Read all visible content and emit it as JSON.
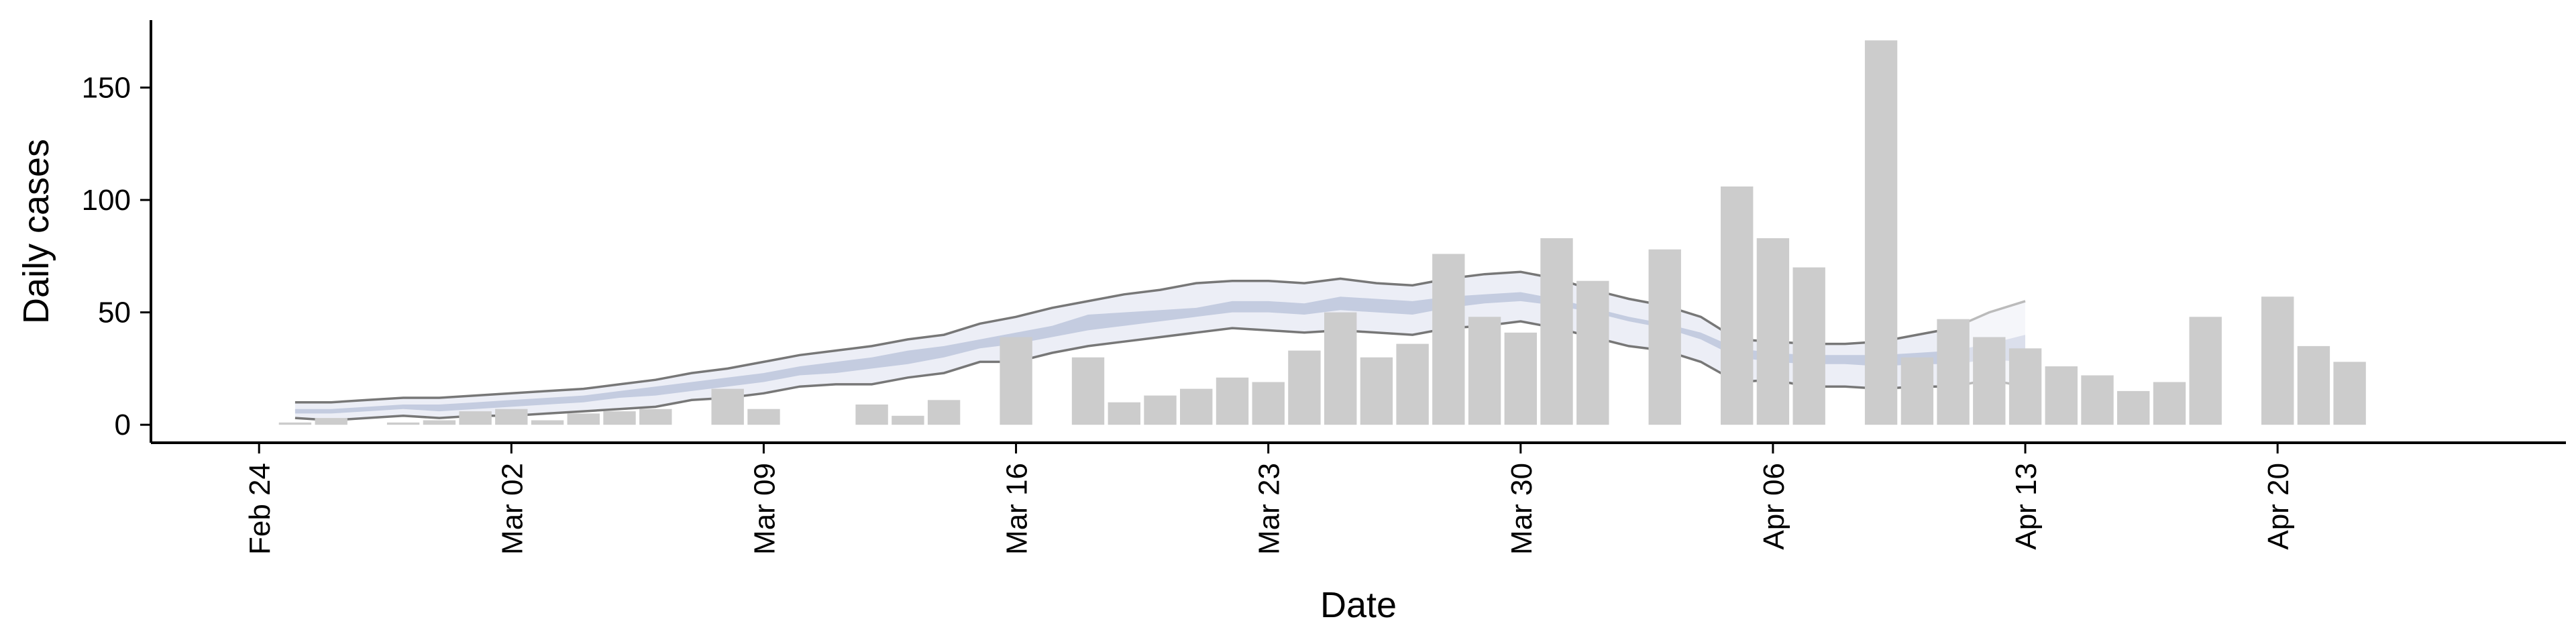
{
  "chart_data": {
    "type": "bar",
    "title": "",
    "xlabel": "Date",
    "ylabel": "Daily cases",
    "ylim": [
      -8,
      180
    ],
    "xlim": [
      "2020-02-21",
      "2020-04-28"
    ],
    "grid": false,
    "legend": "none",
    "y_ticks": [
      0,
      50,
      100,
      150
    ],
    "x_ticks": [
      {
        "date": "2020-02-24",
        "label": "Feb 24"
      },
      {
        "date": "2020-03-02",
        "label": "Mar 02"
      },
      {
        "date": "2020-03-09",
        "label": "Mar 09"
      },
      {
        "date": "2020-03-16",
        "label": "Mar 16"
      },
      {
        "date": "2020-03-23",
        "label": "Mar 23"
      },
      {
        "date": "2020-03-30",
        "label": "Mar 30"
      },
      {
        "date": "2020-04-06",
        "label": "Apr 06"
      },
      {
        "date": "2020-04-13",
        "label": "Apr 13"
      },
      {
        "date": "2020-04-20",
        "label": "Apr 20"
      }
    ],
    "colors": {
      "bar": "#cccccc",
      "band_outer": "#eceef6",
      "band_inner": "#c4cce0",
      "band_line": "#777777",
      "band_tail": "#bbbbbb",
      "axis": "#000000"
    },
    "bars": {
      "x": [
        "2020-02-25",
        "2020-02-26",
        "2020-02-27",
        "2020-02-28",
        "2020-02-29",
        "2020-03-01",
        "2020-03-02",
        "2020-03-03",
        "2020-03-04",
        "2020-03-05",
        "2020-03-06",
        "2020-03-07",
        "2020-03-08",
        "2020-03-09",
        "2020-03-10",
        "2020-03-11",
        "2020-03-12",
        "2020-03-13",
        "2020-03-14",
        "2020-03-15",
        "2020-03-16",
        "2020-03-17",
        "2020-03-18",
        "2020-03-19",
        "2020-03-20",
        "2020-03-21",
        "2020-03-22",
        "2020-03-23",
        "2020-03-24",
        "2020-03-25",
        "2020-03-26",
        "2020-03-27",
        "2020-03-28",
        "2020-03-29",
        "2020-03-30",
        "2020-03-31",
        "2020-04-01",
        "2020-04-02",
        "2020-04-03",
        "2020-04-04",
        "2020-04-05",
        "2020-04-06",
        "2020-04-07",
        "2020-04-08",
        "2020-04-09",
        "2020-04-10",
        "2020-04-11",
        "2020-04-12",
        "2020-04-13",
        "2020-04-14",
        "2020-04-15",
        "2020-04-16",
        "2020-04-17",
        "2020-04-18",
        "2020-04-19",
        "2020-04-20",
        "2020-04-21",
        "2020-04-22"
      ],
      "values": [
        1,
        3,
        0,
        1,
        2,
        6,
        7,
        2,
        5,
        6,
        7,
        0,
        16,
        7,
        0,
        0,
        9,
        4,
        11,
        0,
        39,
        0,
        30,
        10,
        13,
        16,
        21,
        19,
        33,
        50,
        30,
        36,
        76,
        48,
        41,
        83,
        64,
        0,
        78,
        0,
        106,
        83,
        70,
        0,
        171,
        30,
        47,
        39,
        34,
        26,
        22,
        15,
        19,
        48,
        0,
        57,
        35,
        28
      ]
    },
    "estimate_band": {
      "x": [
        "2020-02-25",
        "2020-02-26",
        "2020-02-27",
        "2020-02-28",
        "2020-02-29",
        "2020-03-01",
        "2020-03-02",
        "2020-03-03",
        "2020-03-04",
        "2020-03-05",
        "2020-03-06",
        "2020-03-07",
        "2020-03-08",
        "2020-03-09",
        "2020-03-10",
        "2020-03-11",
        "2020-03-12",
        "2020-03-13",
        "2020-03-14",
        "2020-03-15",
        "2020-03-16",
        "2020-03-17",
        "2020-03-18",
        "2020-03-19",
        "2020-03-20",
        "2020-03-21",
        "2020-03-22",
        "2020-03-23",
        "2020-03-24",
        "2020-03-25",
        "2020-03-26",
        "2020-03-27",
        "2020-03-28",
        "2020-03-29",
        "2020-03-30",
        "2020-03-31",
        "2020-04-01",
        "2020-04-02",
        "2020-04-03",
        "2020-04-04",
        "2020-04-05",
        "2020-04-06",
        "2020-04-07",
        "2020-04-08",
        "2020-04-09",
        "2020-04-10",
        "2020-04-11",
        "2020-04-12",
        "2020-04-13"
      ],
      "lower_outer": [
        3,
        2,
        3,
        4,
        3,
        4,
        4,
        5,
        6,
        7,
        8,
        11,
        12,
        14,
        17,
        18,
        18,
        21,
        23,
        28,
        28,
        32,
        35,
        37,
        39,
        41,
        43,
        42,
        41,
        42,
        41,
        40,
        43,
        44,
        46,
        43,
        39,
        35,
        33,
        28,
        19,
        20,
        17,
        17,
        16,
        17,
        17,
        20,
        17
      ],
      "lower_inner": [
        5,
        5,
        6,
        7,
        6,
        7,
        8,
        9,
        10,
        12,
        13,
        15,
        17,
        19,
        22,
        23,
        25,
        27,
        30,
        34,
        36,
        39,
        42,
        44,
        46,
        48,
        50,
        50,
        49,
        51,
        50,
        49,
        52,
        54,
        55,
        53,
        50,
        46,
        43,
        38,
        30,
        28,
        27,
        27,
        26,
        27,
        27,
        29,
        28
      ],
      "upper_inner": [
        7,
        7,
        8,
        9,
        9,
        10,
        11,
        12,
        13,
        15,
        17,
        19,
        21,
        23,
        26,
        28,
        30,
        33,
        35,
        38,
        41,
        44,
        49,
        50,
        51,
        52,
        55,
        55,
        54,
        57,
        56,
        55,
        57,
        58,
        59,
        56,
        52,
        48,
        45,
        41,
        34,
        32,
        31,
        31,
        31,
        32,
        33,
        36,
        40
      ],
      "upper_outer": [
        10,
        10,
        11,
        12,
        12,
        13,
        14,
        15,
        16,
        18,
        20,
        23,
        25,
        28,
        31,
        33,
        35,
        38,
        40,
        45,
        48,
        52,
        55,
        58,
        60,
        63,
        64,
        64,
        63,
        65,
        63,
        62,
        65,
        67,
        68,
        65,
        60,
        56,
        53,
        48,
        38,
        37,
        36,
        36,
        37,
        40,
        43,
        50,
        55
      ],
      "projected_from": "2020-04-11"
    }
  }
}
